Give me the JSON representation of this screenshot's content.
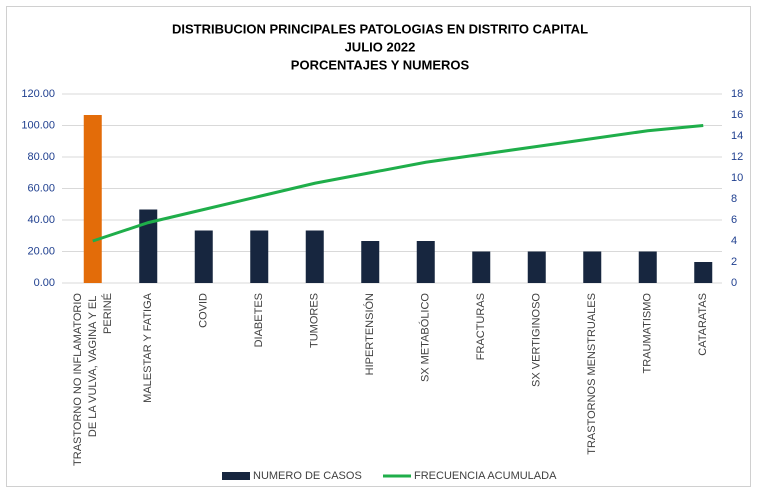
{
  "chart_data": {
    "type": "pareto",
    "title": [
      "DISTRIBUCION PRINCIPALES PATOLOGIAS EN DISTRITO CAPITAL",
      "JULIO 2022",
      "PORCENTAJES Y NUMEROS"
    ],
    "categories": [
      "TRASTORNO NO INFLAMATORIO DE LA VULVA, VAGINA Y EL  PERINÉ",
      "MALESTAR Y FATIGA",
      "COVID",
      "DIABETES",
      "TUMORES",
      "HIPERTENSIÓN",
      "SX METABÓLICO",
      "FRACTURAS",
      "SX VERTIGINOSO",
      "TRASTORNOS MENSTRUALES",
      "TRAUMATISMO",
      "CATARATAS"
    ],
    "series": [
      {
        "name": "NUMERO DE CASOS",
        "type": "bar",
        "axis": "y2",
        "color": "#17263f",
        "colors": [
          "#e36c09",
          "#17263f",
          "#17263f",
          "#17263f",
          "#17263f",
          "#17263f",
          "#17263f",
          "#17263f",
          "#17263f",
          "#17263f",
          "#17263f",
          "#17263f"
        ],
        "values": [
          16,
          7,
          5,
          5,
          5,
          4,
          4,
          3,
          3,
          3,
          3,
          2
        ]
      },
      {
        "name": "FRECUENCIA ACUMULADA",
        "type": "line",
        "axis": "y",
        "color": "#1fae4a",
        "values": [
          26.67,
          38.33,
          46.67,
          55,
          63.33,
          70,
          76.67,
          81.67,
          86.67,
          91.67,
          96.67,
          100
        ]
      }
    ],
    "ylim": [
      0,
      120
    ],
    "yticks": [
      {
        "value": 0,
        "label": "0.00"
      },
      {
        "value": 20,
        "label": "20.00"
      },
      {
        "value": 40,
        "label": "40.00"
      },
      {
        "value": 60,
        "label": "60.00"
      },
      {
        "value": 80,
        "label": "80.00"
      },
      {
        "value": 100,
        "label": "100.00"
      },
      {
        "value": 120,
        "label": "120.00"
      }
    ],
    "y2lim": [
      0,
      18
    ],
    "y2ticks": [
      0,
      2,
      4,
      6,
      8,
      10,
      12,
      14,
      16,
      18
    ],
    "grid": true,
    "legend": "bottom"
  }
}
